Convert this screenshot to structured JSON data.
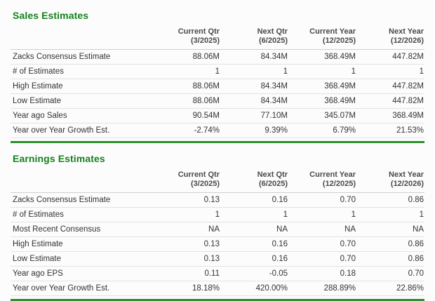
{
  "colors": {
    "title_green": "#14821d",
    "divider_green": "#2e8f31",
    "text": "#333333",
    "header_text": "#4a4a4a",
    "row_border": "#e3e3e3"
  },
  "sales": {
    "title": "Sales Estimates",
    "columns": [
      {
        "label": "Current Qtr",
        "sub": "(3/2025)"
      },
      {
        "label": "Next Qtr",
        "sub": "(6/2025)"
      },
      {
        "label": "Current Year",
        "sub": "(12/2025)"
      },
      {
        "label": "Next Year",
        "sub": "(12/2026)"
      }
    ],
    "rows": [
      {
        "label": "Zacks Consensus Estimate",
        "values": [
          "88.06M",
          "84.34M",
          "368.49M",
          "447.82M"
        ]
      },
      {
        "label": "# of Estimates",
        "values": [
          "1",
          "1",
          "1",
          "1"
        ]
      },
      {
        "label": "High Estimate",
        "values": [
          "88.06M",
          "84.34M",
          "368.49M",
          "447.82M"
        ]
      },
      {
        "label": "Low Estimate",
        "values": [
          "88.06M",
          "84.34M",
          "368.49M",
          "447.82M"
        ]
      },
      {
        "label": "Year ago Sales",
        "values": [
          "90.54M",
          "77.10M",
          "345.07M",
          "368.49M"
        ]
      },
      {
        "label": "Year over Year Growth Est.",
        "values": [
          "-2.74%",
          "9.39%",
          "6.79%",
          "21.53%"
        ]
      }
    ]
  },
  "earnings": {
    "title": "Earnings Estimates",
    "columns": [
      {
        "label": "Current Qtr",
        "sub": "(3/2025)"
      },
      {
        "label": "Next Qtr",
        "sub": "(6/2025)"
      },
      {
        "label": "Current Year",
        "sub": "(12/2025)"
      },
      {
        "label": "Next Year",
        "sub": "(12/2026)"
      }
    ],
    "rows": [
      {
        "label": "Zacks Consensus Estimate",
        "values": [
          "0.13",
          "0.16",
          "0.70",
          "0.86"
        ]
      },
      {
        "label": "# of Estimates",
        "values": [
          "1",
          "1",
          "1",
          "1"
        ]
      },
      {
        "label": "Most Recent Consensus",
        "values": [
          "NA",
          "NA",
          "NA",
          "NA"
        ]
      },
      {
        "label": "High Estimate",
        "values": [
          "0.13",
          "0.16",
          "0.70",
          "0.86"
        ]
      },
      {
        "label": "Low Estimate",
        "values": [
          "0.13",
          "0.16",
          "0.70",
          "0.86"
        ]
      },
      {
        "label": "Year ago EPS",
        "values": [
          "0.11",
          "-0.05",
          "0.18",
          "0.70"
        ]
      },
      {
        "label": "Year over Year Growth Est.",
        "values": [
          "18.18%",
          "420.00%",
          "288.89%",
          "22.86%"
        ]
      }
    ]
  }
}
